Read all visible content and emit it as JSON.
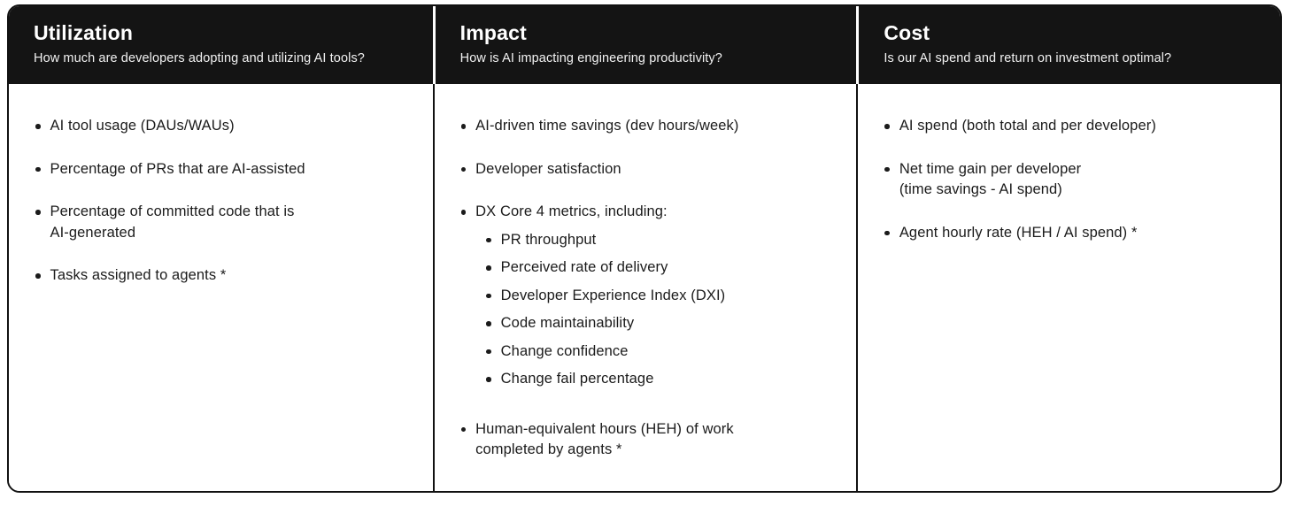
{
  "table": {
    "columns": [
      {
        "title": "Utilization",
        "question": "How much are developers adopting and utilizing AI tools?",
        "items": [
          {
            "lines": [
              "AI tool usage (DAUs/WAUs)"
            ]
          },
          {
            "lines": [
              "Percentage of PRs that are AI-assisted"
            ]
          },
          {
            "lines": [
              "Percentage of committed code that is",
              "AI-generated"
            ]
          },
          {
            "lines": [
              "Tasks assigned to agents *"
            ]
          }
        ]
      },
      {
        "title": "Impact",
        "question": "How is AI impacting engineering productivity?",
        "items": [
          {
            "lines": [
              "AI-driven time savings (dev hours/week)"
            ]
          },
          {
            "lines": [
              "Developer satisfaction"
            ]
          },
          {
            "lines": [
              "DX Core 4 metrics, including:"
            ],
            "subitems": [
              "PR throughput",
              "Perceived rate of delivery",
              "Developer Experience Index (DXI)",
              "Code maintainability",
              "Change confidence",
              "Change fail percentage"
            ]
          },
          {
            "lines": [
              "Human-equivalent hours (HEH) of work",
              "completed by agents *"
            ]
          }
        ]
      },
      {
        "title": "Cost",
        "question": "Is our AI spend and return on investment optimal?",
        "items": [
          {
            "lines": [
              "AI spend (both total and per developer)"
            ]
          },
          {
            "lines": [
              "Net time gain per developer",
              "(time savings - AI spend)"
            ]
          },
          {
            "lines": [
              "Agent hourly rate (HEH / AI spend) *"
            ]
          }
        ]
      }
    ]
  },
  "colors": {
    "header_bg": "#141414",
    "header_title": "#ffffff",
    "header_subtitle": "#f2f2f2",
    "body_text": "#1b1b1b",
    "border": "#111111",
    "page_bg": "#ffffff"
  }
}
